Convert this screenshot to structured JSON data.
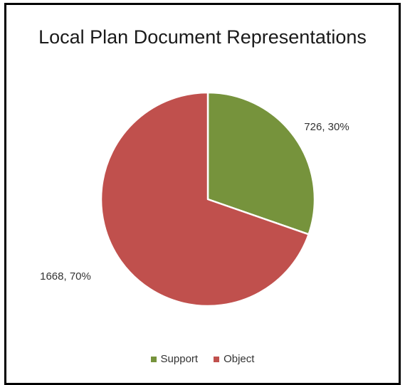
{
  "chart_data": {
    "type": "pie",
    "title": "Local Plan Document Representations",
    "categories": [
      "Support",
      "Object"
    ],
    "values": [
      726,
      1668
    ],
    "percentages": [
      30,
      70
    ],
    "data_labels": [
      "726, 30%",
      "1668, 70%"
    ],
    "colors": [
      "#76933C",
      "#C0504D"
    ],
    "legend_position": "bottom",
    "start_angle_deg": 0,
    "direction": "clockwise"
  }
}
